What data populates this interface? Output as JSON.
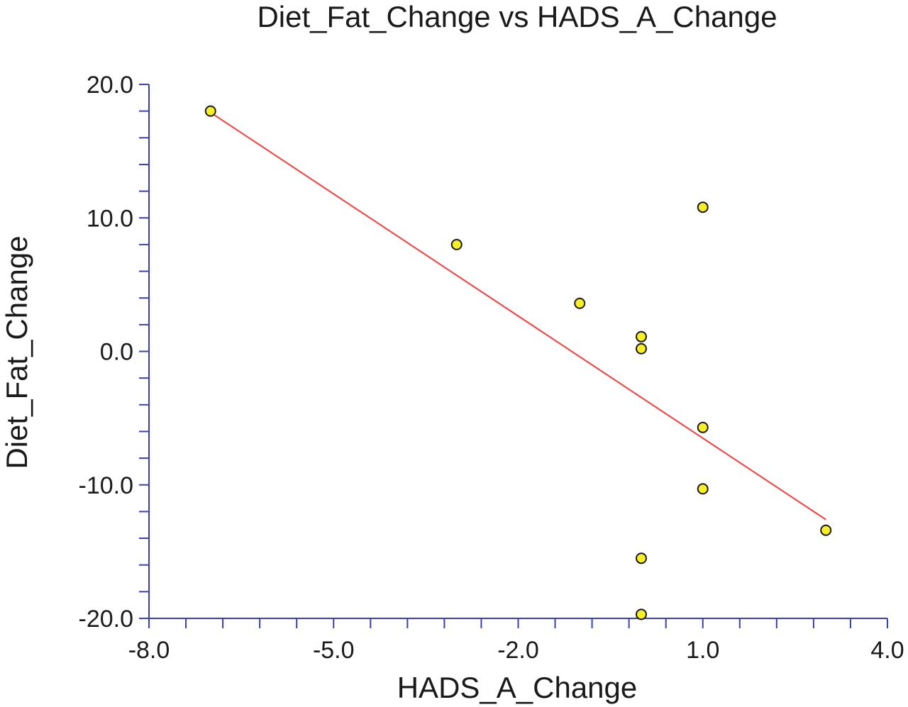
{
  "chart_data": {
    "type": "scatter",
    "title": "Diet_Fat_Change vs HADS_A_Change",
    "xlabel": "HADS_A_Change",
    "ylabel": "Diet_Fat_Change",
    "xlim": [
      -8.0,
      4.0
    ],
    "ylim": [
      -20.0,
      20.0
    ],
    "x_ticks": [
      -8.0,
      -5.0,
      -2.0,
      1.0,
      4.0
    ],
    "x_tick_labels": [
      "-8.0",
      "-5.0",
      "-2.0",
      "1.0",
      "4.0"
    ],
    "x_minor_step": 0.6,
    "y_ticks": [
      20.0,
      10.0,
      0.0,
      -10.0,
      -20.0
    ],
    "y_tick_labels": [
      "20.0",
      "10.0",
      "0.0",
      "-10.0",
      "-20.0"
    ],
    "y_minor_step": 2.0,
    "grid": false,
    "legend": "none",
    "points": [
      {
        "x": -7.0,
        "y": 18.0
      },
      {
        "x": -3.0,
        "y": 8.0
      },
      {
        "x": -1.0,
        "y": 3.6
      },
      {
        "x": 0.0,
        "y": 1.1
      },
      {
        "x": 0.0,
        "y": 0.2
      },
      {
        "x": 1.0,
        "y": 10.8
      },
      {
        "x": 1.0,
        "y": -5.7
      },
      {
        "x": 1.0,
        "y": -10.3
      },
      {
        "x": 3.0,
        "y": -13.4
      },
      {
        "x": 0.0,
        "y": -15.5
      },
      {
        "x": 0.0,
        "y": -19.7
      }
    ],
    "trendline": {
      "x": [
        -7.0,
        3.0
      ],
      "y": [
        17.9,
        -12.6
      ]
    },
    "colors": {
      "axis": "#3b3fb5",
      "point_fill": "#f7ef1e",
      "point_stroke": "#1a1a1a",
      "trendline": "#ff3b3b",
      "text": "#1a1a1a"
    }
  }
}
